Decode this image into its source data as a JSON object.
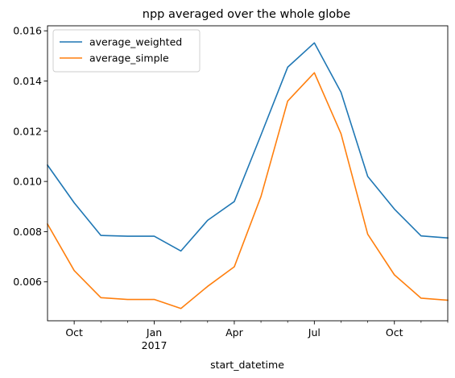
{
  "chart_data": {
    "type": "line",
    "title": "npp averaged over the whole globe",
    "xlabel": "start_datetime",
    "ylabel": "",
    "x": [
      "2016-09",
      "2016-10",
      "2016-11",
      "2016-12",
      "2017-01",
      "2017-02",
      "2017-03",
      "2017-04",
      "2017-05",
      "2017-06",
      "2017-07",
      "2017-08",
      "2017-09",
      "2017-10",
      "2017-11",
      "2017-12"
    ],
    "xlim": [
      "2016-09",
      "2017-12"
    ],
    "ylim": [
      0.00445,
      0.0162
    ],
    "x_ticks_major": [
      {
        "x": "2016-10",
        "label": "Oct",
        "sublabel": ""
      },
      {
        "x": "2017-01",
        "label": "Jan",
        "sublabel": "2017"
      },
      {
        "x": "2017-04",
        "label": "Apr",
        "sublabel": ""
      },
      {
        "x": "2017-07",
        "label": "Jul",
        "sublabel": ""
      },
      {
        "x": "2017-10",
        "label": "Oct",
        "sublabel": ""
      }
    ],
    "x_ticks_minor": [
      "2016-11",
      "2016-12",
      "2017-02",
      "2017-03",
      "2017-05",
      "2017-06",
      "2017-08",
      "2017-09",
      "2017-11",
      "2017-12"
    ],
    "y_ticks": [
      {
        "y": 0.006,
        "label": "0.006"
      },
      {
        "y": 0.008,
        "label": "0.008"
      },
      {
        "y": 0.01,
        "label": "0.010"
      },
      {
        "y": 0.012,
        "label": "0.012"
      },
      {
        "y": 0.014,
        "label": "0.014"
      },
      {
        "y": 0.016,
        "label": "0.016"
      }
    ],
    "grid": false,
    "legend_position": "top-left",
    "series": [
      {
        "name": "average_weighted",
        "color": "#1f77b4",
        "values": [
          0.01065,
          0.00915,
          0.00785,
          0.00782,
          0.00782,
          0.00723,
          0.00845,
          0.0092,
          0.01185,
          0.01455,
          0.01552,
          0.01355,
          0.0102,
          0.0089,
          0.00783,
          0.00775
        ]
      },
      {
        "name": "average_simple",
        "color": "#ff7f0e",
        "values": [
          0.0083,
          0.00645,
          0.00537,
          0.0053,
          0.0053,
          0.00494,
          0.00582,
          0.0066,
          0.0094,
          0.0132,
          0.01433,
          0.0119,
          0.0079,
          0.00628,
          0.00535,
          0.00527
        ]
      }
    ]
  }
}
